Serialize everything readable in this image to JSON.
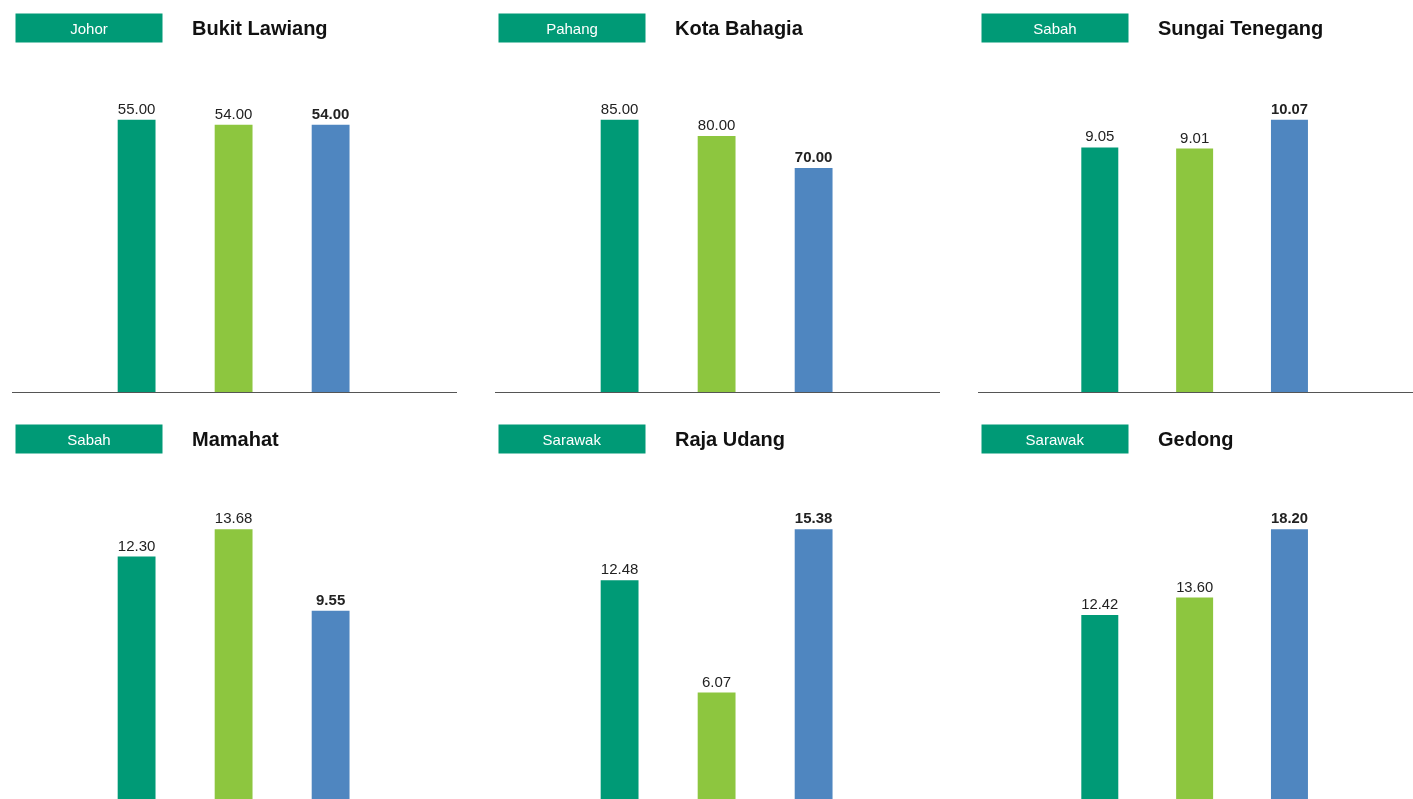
{
  "chart_data": [
    {
      "type": "bar",
      "subtitle": "Johor",
      "title": "Bukit Lawiang",
      "categories": [
        null,
        null,
        null
      ],
      "values": [
        55.0,
        54.0,
        54.0
      ],
      "value_labels": [
        "55.00",
        "54.00",
        "54.00"
      ],
      "colors": [
        "#009a76",
        "#8dc63f",
        "#4f86c0"
      ],
      "tick_labels": false
    },
    {
      "type": "bar",
      "subtitle": "Pahang",
      "title": "Kota Bahagia",
      "categories": [
        null,
        null,
        null
      ],
      "values": [
        85.0,
        80.0,
        70.0
      ],
      "value_labels": [
        "85.00",
        "80.00",
        "70.00"
      ],
      "colors": [
        "#009a76",
        "#8dc63f",
        "#4f86c0"
      ],
      "tick_labels": false
    },
    {
      "type": "bar",
      "subtitle": "Sabah",
      "title": "Sungai Tenegang",
      "categories": [
        null,
        null,
        null
      ],
      "values": [
        9.05,
        9.01,
        10.07
      ],
      "value_labels": [
        "9.05",
        "9.01",
        "10.07"
      ],
      "colors": [
        "#009a76",
        "#8dc63f",
        "#4f86c0"
      ],
      "tick_labels": false
    },
    {
      "type": "bar",
      "subtitle": "Sabah",
      "title": "Mamahat",
      "categories": [
        null,
        null,
        null
      ],
      "values": [
        12.3,
        13.68,
        9.55
      ],
      "value_labels": [
        "12.30",
        "13.68",
        "9.55"
      ],
      "colors": [
        "#009a76",
        "#8dc63f",
        "#4f86c0"
      ],
      "tick_labels": false
    },
    {
      "type": "bar",
      "subtitle": "Sarawak",
      "title": "Raja Udang",
      "categories": [
        null,
        null,
        null
      ],
      "values": [
        12.48,
        6.07,
        15.38
      ],
      "value_labels": [
        "12.48",
        "6.07",
        "15.38"
      ],
      "colors": [
        "#009a76",
        "#8dc63f",
        "#4f86c0"
      ],
      "tick_labels": false
    },
    {
      "type": "bar",
      "subtitle": "Sarawak",
      "title": "Gedong",
      "categories": [
        null,
        null,
        null
      ],
      "values": [
        12.42,
        13.6,
        18.2
      ],
      "value_labels": [
        "12.42",
        "13.60",
        "18.20"
      ],
      "colors": [
        "#009a76",
        "#8dc63f",
        "#4f86c0"
      ],
      "tick_labels": false
    }
  ]
}
